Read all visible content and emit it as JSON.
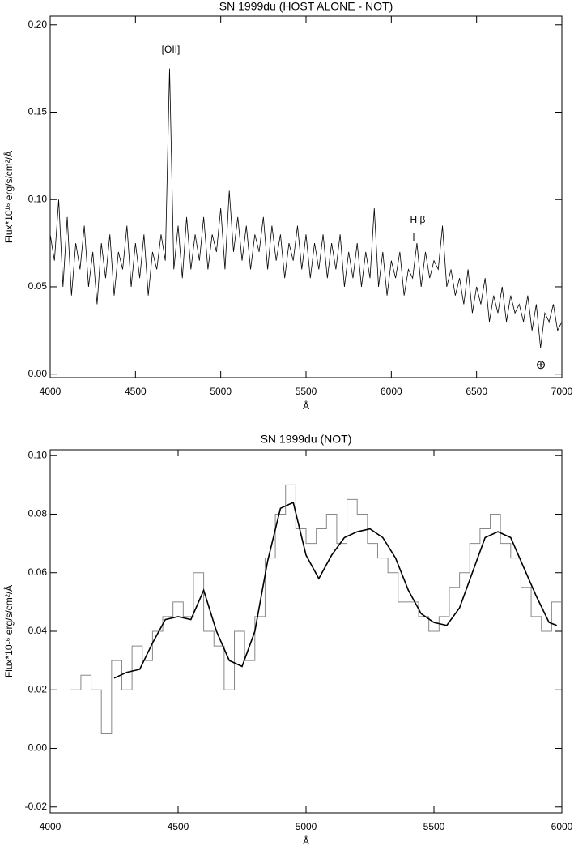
{
  "chart_data": [
    {
      "type": "line",
      "title": "SN 1999du (HOST ALONE - NOT)",
      "xlabel": "Å",
      "ylabel": "Flux*10¹⁶ erg/s/cm²/Å",
      "annotations": [
        "[OII]",
        "H β",
        "⊕"
      ],
      "xlim": [
        4000,
        7000
      ],
      "xticks": [
        4000,
        4500,
        5000,
        5500,
        6000,
        6500,
        7000
      ],
      "ylim": [
        -0.002,
        0.205
      ],
      "yticks": [
        {
          "value": 0,
          "label": "0.00"
        },
        {
          "value": 0.05,
          "label": "0.05"
        },
        {
          "value": 0.1,
          "label": "0.10"
        },
        {
          "value": 0.15,
          "label": "0.15"
        },
        {
          "value": 0.2,
          "label": "0.20"
        }
      ],
      "grid": false,
      "series": [
        {
          "color": "#000000",
          "step": false,
          "x": [
            4000,
            4025,
            4050,
            4075,
            4100,
            4125,
            4150,
            4175,
            4200,
            4225,
            4250,
            4275,
            4300,
            4325,
            4350,
            4375,
            4400,
            4425,
            4450,
            4475,
            4500,
            4525,
            4550,
            4575,
            4600,
            4625,
            4650,
            4675,
            4700,
            4725,
            4750,
            4775,
            4800,
            4825,
            4850,
            4875,
            4900,
            4925,
            4950,
            4975,
            5000,
            5025,
            5050,
            5075,
            5100,
            5125,
            5150,
            5175,
            5200,
            5225,
            5250,
            5275,
            5300,
            5325,
            5350,
            5375,
            5400,
            5425,
            5450,
            5475,
            5500,
            5525,
            5550,
            5575,
            5600,
            5625,
            5650,
            5675,
            5700,
            5725,
            5750,
            5775,
            5800,
            5825,
            5850,
            5875,
            5900,
            5925,
            5950,
            5975,
            6000,
            6025,
            6050,
            6075,
            6100,
            6125,
            6150,
            6175,
            6200,
            6225,
            6250,
            6275,
            6300,
            6325,
            6350,
            6375,
            6400,
            6425,
            6450,
            6475,
            6500,
            6525,
            6550,
            6575,
            6600,
            6625,
            6650,
            6675,
            6700,
            6725,
            6750,
            6775,
            6800,
            6825,
            6850,
            6875,
            6900,
            6925,
            6950,
            6975,
            7000
          ],
          "values": [
            0.08,
            0.065,
            0.1,
            0.05,
            0.09,
            0.045,
            0.075,
            0.06,
            0.085,
            0.05,
            0.07,
            0.04,
            0.075,
            0.055,
            0.08,
            0.045,
            0.07,
            0.06,
            0.085,
            0.05,
            0.075,
            0.055,
            0.08,
            0.045,
            0.07,
            0.06,
            0.08,
            0.065,
            0.175,
            0.06,
            0.085,
            0.055,
            0.09,
            0.06,
            0.08,
            0.065,
            0.09,
            0.06,
            0.08,
            0.07,
            0.095,
            0.06,
            0.105,
            0.07,
            0.09,
            0.065,
            0.085,
            0.06,
            0.08,
            0.07,
            0.09,
            0.06,
            0.085,
            0.065,
            0.08,
            0.055,
            0.075,
            0.065,
            0.085,
            0.06,
            0.08,
            0.055,
            0.075,
            0.06,
            0.08,
            0.055,
            0.075,
            0.06,
            0.08,
            0.05,
            0.07,
            0.055,
            0.075,
            0.05,
            0.07,
            0.055,
            0.095,
            0.05,
            0.07,
            0.045,
            0.065,
            0.055,
            0.07,
            0.045,
            0.06,
            0.055,
            0.075,
            0.05,
            0.07,
            0.055,
            0.065,
            0.06,
            0.085,
            0.05,
            0.06,
            0.045,
            0.055,
            0.04,
            0.06,
            0.035,
            0.05,
            0.04,
            0.055,
            0.03,
            0.045,
            0.035,
            0.05,
            0.03,
            0.045,
            0.035,
            0.04,
            0.03,
            0.045,
            0.025,
            0.04,
            0.015,
            0.035,
            0.03,
            0.04,
            0.025,
            0.03
          ]
        }
      ]
    },
    {
      "type": "line",
      "title": "SN 1999du (NOT)",
      "xlabel": "Å",
      "ylabel": "Flux*10¹⁶ erg/s/cm²/Å",
      "xlim": [
        4000,
        6000
      ],
      "xticks": [
        4000,
        4500,
        5000,
        5500,
        6000
      ],
      "ylim": [
        -0.022,
        0.102
      ],
      "yticks": [
        {
          "value": -0.02,
          "label": "-0.02"
        },
        {
          "value": 0,
          "label": "0.00"
        },
        {
          "value": 0.02,
          "label": "0.02"
        },
        {
          "value": 0.04,
          "label": "0.04"
        },
        {
          "value": 0.06,
          "label": "0.06"
        },
        {
          "value": 0.08,
          "label": "0.08"
        },
        {
          "value": 0.1,
          "label": "0.10"
        }
      ],
      "grid": false,
      "series": [
        {
          "color": "#888888",
          "step": true,
          "x": [
            4100,
            4140,
            4180,
            4220,
            4260,
            4300,
            4340,
            4380,
            4420,
            4460,
            4500,
            4540,
            4580,
            4620,
            4660,
            4700,
            4740,
            4780,
            4820,
            4860,
            4900,
            4940,
            4980,
            5020,
            5060,
            5100,
            5140,
            5180,
            5220,
            5260,
            5300,
            5340,
            5380,
            5420,
            5460,
            5500,
            5540,
            5580,
            5620,
            5660,
            5700,
            5740,
            5780,
            5820,
            5860,
            5900,
            5940,
            5980
          ],
          "values": [
            0.02,
            0.025,
            0.02,
            0.005,
            0.03,
            0.02,
            0.035,
            0.03,
            0.04,
            0.045,
            0.05,
            0.045,
            0.06,
            0.04,
            0.035,
            0.02,
            0.04,
            0.03,
            0.045,
            0.065,
            0.08,
            0.09,
            0.075,
            0.07,
            0.075,
            0.08,
            0.07,
            0.085,
            0.08,
            0.07,
            0.065,
            0.06,
            0.05,
            0.05,
            0.045,
            0.04,
            0.045,
            0.055,
            0.06,
            0.07,
            0.075,
            0.08,
            0.07,
            0.065,
            0.055,
            0.045,
            0.04,
            0.05
          ]
        },
        {
          "color": "#000000",
          "step": false,
          "x": [
            4250,
            4300,
            4350,
            4400,
            4450,
            4500,
            4550,
            4600,
            4650,
            4700,
            4750,
            4800,
            4850,
            4900,
            4950,
            5000,
            5050,
            5100,
            5150,
            5200,
            5250,
            5300,
            5350,
            5400,
            5450,
            5500,
            5550,
            5600,
            5650,
            5700,
            5750,
            5800,
            5850,
            5900,
            5950,
            5980
          ],
          "values": [
            0.024,
            0.026,
            0.027,
            0.036,
            0.044,
            0.045,
            0.044,
            0.054,
            0.04,
            0.03,
            0.028,
            0.04,
            0.064,
            0.082,
            0.084,
            0.066,
            0.058,
            0.066,
            0.072,
            0.074,
            0.075,
            0.072,
            0.065,
            0.054,
            0.046,
            0.043,
            0.042,
            0.048,
            0.06,
            0.072,
            0.074,
            0.072,
            0.062,
            0.052,
            0.043,
            0.042
          ]
        }
      ]
    }
  ]
}
